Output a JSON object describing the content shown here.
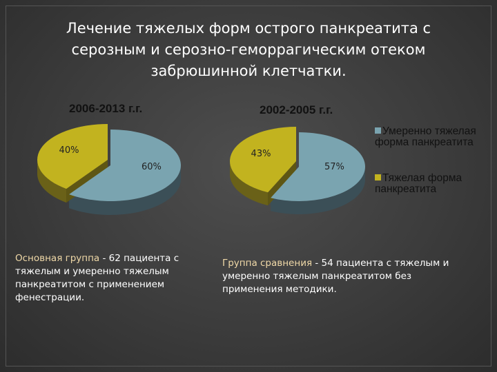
{
  "title": "Лечение тяжелых форм острого панкреатита с серозным и серозно-геморрагическим отеком забрюшинной клетчатки.",
  "colors": {
    "series_blue": "#7aa4b0",
    "series_yellow": "#c2b31f"
  },
  "chart_data": [
    {
      "type": "pie",
      "title": "2006-2013 г.г.",
      "categories": [
        "Умеренно тяжелая форма панкреатита",
        "Тяжелая форма панкреатита"
      ],
      "values": [
        60,
        40
      ],
      "labels": [
        "60%",
        "40%"
      ],
      "legend": "right"
    },
    {
      "type": "pie",
      "title": "2002-2005 г.г.",
      "categories": [
        "Умеренно тяжелая форма панкреатита",
        "Тяжелая форма панкреатита"
      ],
      "values": [
        57,
        43
      ],
      "labels": [
        "57%",
        "43%"
      ],
      "legend": "right"
    }
  ],
  "legend": {
    "items": [
      {
        "label": "Умеренно тяжелая форма панкреатита",
        "color": "#7aa4b0"
      },
      {
        "label": "Тяжелая форма панкреатита",
        "color": "#c2b31f"
      }
    ]
  },
  "captions": {
    "group1_name": "Основная группа",
    "group1_text": " - 62 пациента с тяжелым и умеренно тяжелым панкреатитом с применением фенестрации.",
    "group2_name": "Группа сравнения",
    "group2_text": " - 54 пациента с тяжелым и умеренно тяжелым панкреатитом без применения методики."
  }
}
